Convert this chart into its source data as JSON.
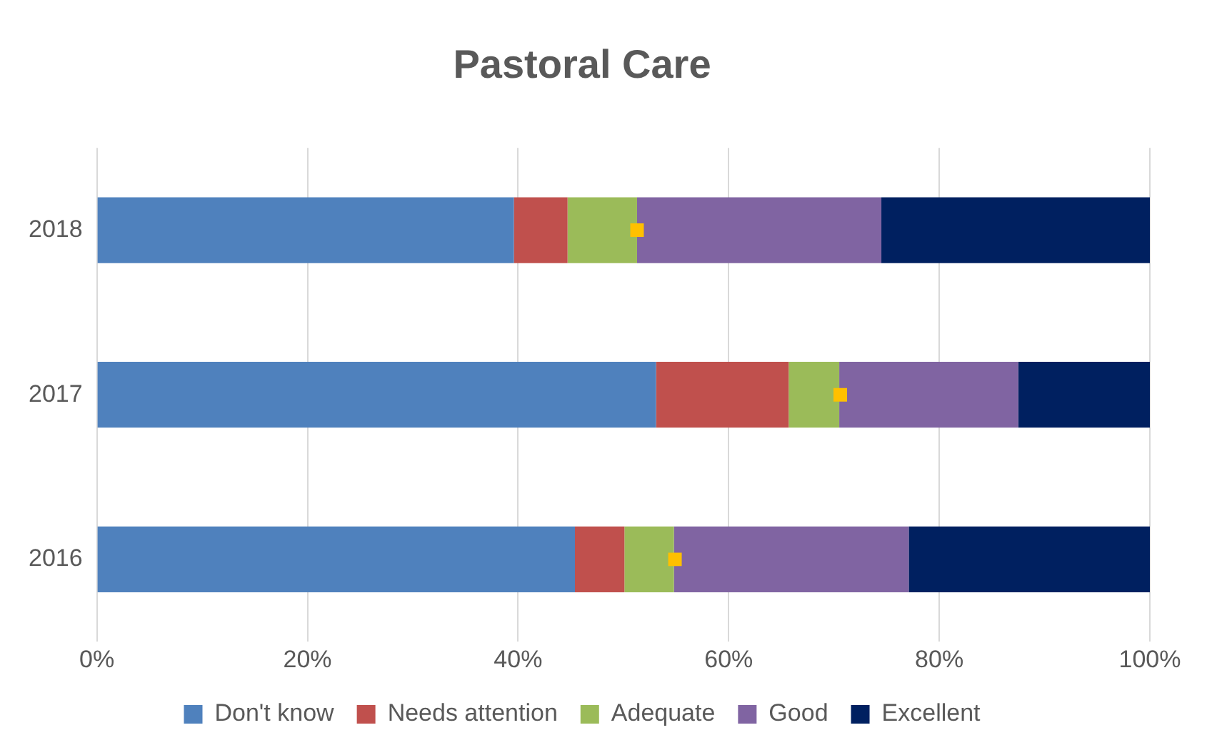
{
  "chart_data": {
    "type": "bar",
    "title": "Pastoral Care",
    "orientation": "horizontal",
    "stacked": true,
    "categories": [
      "2018",
      "2017",
      "2016"
    ],
    "series": [
      {
        "name": "Don't know",
        "color": "#4f81bd",
        "values": [
          39.6,
          53.1,
          45.4
        ]
      },
      {
        "name": "Needs attention",
        "color": "#c0504d",
        "values": [
          5.1,
          12.6,
          4.7
        ]
      },
      {
        "name": "Adequate",
        "color": "#9bbb59",
        "values": [
          6.6,
          4.8,
          4.7
        ]
      },
      {
        "name": "Good",
        "color": "#8064a2",
        "values": [
          23.2,
          17,
          22.3
        ]
      },
      {
        "name": "Excellent",
        "color": "#002060",
        "values": [
          25.5,
          12.5,
          22.9
        ]
      },
      {
        "type": "scatter",
        "color": "#ffc000",
        "values": [
          51.3,
          70.6,
          54.9
        ]
      }
    ],
    "xlim": [
      0,
      100
    ],
    "xticks": [
      {
        "value": 0,
        "label": "0%"
      },
      {
        "value": 20,
        "label": "20%"
      },
      {
        "value": 40,
        "label": "40%"
      },
      {
        "value": 60,
        "label": "60%"
      },
      {
        "value": 80,
        "label": "80%"
      },
      {
        "value": 100,
        "label": "100%"
      }
    ],
    "grid": "x",
    "legend": "bottom"
  }
}
